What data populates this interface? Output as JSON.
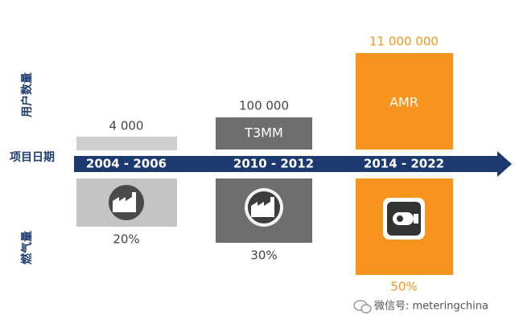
{
  "axis_labels": {
    "users": "用户数量",
    "date": "项目日期",
    "gas": "燃气量"
  },
  "periods": [
    {
      "date": "2004 - 2006",
      "users": "4 000",
      "gas": "20%"
    },
    {
      "date": "2010 - 2012",
      "system": "T3MM",
      "users": "100 000",
      "gas": "30%"
    },
    {
      "date": "2014 - 2022",
      "system": "AMR",
      "users": "11 000 000",
      "gas": "50%"
    }
  ],
  "watermark": "微信号: meteringchina"
}
